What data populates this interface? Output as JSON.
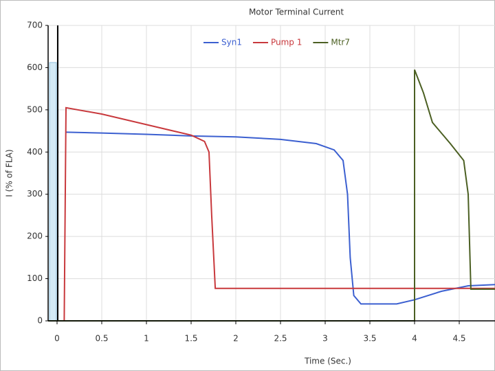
{
  "chart_data": {
    "type": "line",
    "title": "Motor Terminal Current",
    "xlabel": "Time (Sec.)",
    "ylabel": "I (% of FLA)",
    "xlim": [
      -0.1,
      4.9
    ],
    "ylim": [
      0,
      700
    ],
    "xticks": [
      0,
      0.5,
      1,
      1.5,
      2,
      2.5,
      3,
      3.5,
      4,
      4.5
    ],
    "yticks": [
      0,
      100,
      200,
      300,
      400,
      500,
      600,
      700
    ],
    "grid": true,
    "legend": "top",
    "series": [
      {
        "name": "Syn1",
        "color": "#3b5fd0",
        "x": [
          0.1,
          0.5,
          1,
          1.5,
          2,
          2.5,
          2.9,
          3.1,
          3.2,
          3.25,
          3.28,
          3.32,
          3.4,
          3.8,
          4.0,
          4.3,
          4.6,
          4.9
        ],
        "values": [
          447,
          445,
          442,
          438,
          436,
          430,
          420,
          405,
          380,
          300,
          150,
          60,
          40,
          40,
          50,
          70,
          83,
          86
        ]
      },
      {
        "name": "Pump 1",
        "color": "#c8383c",
        "x": [
          0.08,
          0.1,
          0.5,
          1,
          1.5,
          1.65,
          1.7,
          1.73,
          1.77,
          4.9
        ],
        "values": [
          0,
          505,
          490,
          465,
          440,
          425,
          400,
          250,
          77,
          77
        ]
      },
      {
        "name": "Mtr7",
        "color": "#4b5f22",
        "x": [
          -0.1,
          4.0,
          4.0,
          4.1,
          4.2,
          4.4,
          4.55,
          4.6,
          4.63,
          4.9
        ],
        "values": [
          0,
          0,
          595,
          540,
          470,
          420,
          380,
          300,
          75,
          75
        ]
      }
    ]
  }
}
